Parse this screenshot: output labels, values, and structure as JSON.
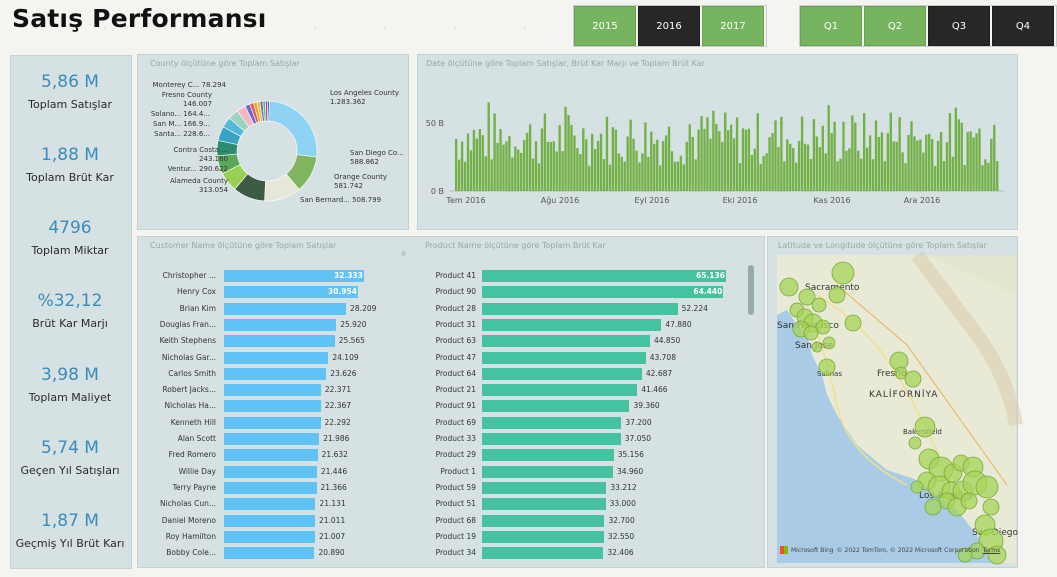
{
  "title": "Satış Performansı",
  "years": [
    {
      "label": "2015",
      "active": true
    },
    {
      "label": "2016",
      "active": false
    },
    {
      "label": "2017",
      "active": true
    }
  ],
  "quarters": [
    {
      "label": "Q1",
      "active": true
    },
    {
      "label": "Q2",
      "active": true
    },
    {
      "label": "Q3",
      "active": false
    },
    {
      "label": "Q4",
      "active": false
    }
  ],
  "kpis": [
    {
      "value": "5,86 M",
      "label": "Toplam Satışlar"
    },
    {
      "value": "1,88 M",
      "label": "Toplam Brüt Kar"
    },
    {
      "value": "4796",
      "label": "Toplam Miktar"
    },
    {
      "value": "%32,12",
      "label": "Brüt Kar Marjı"
    },
    {
      "value": "3,98 M",
      "label": "Toplam Maliyet"
    },
    {
      "value": "5,74 M",
      "label": "Geçen Yıl Satışları"
    },
    {
      "value": "1,87 M",
      "label": "Geçmiş Yıl Brüt Karı"
    }
  ],
  "donut": {
    "title": "County ölçütüne göre Toplam Satışlar",
    "slices": [
      {
        "name": "Los Angeles County",
        "value": "1.283.362",
        "color": "#8fd3f4"
      },
      {
        "name": "San Diego Co...",
        "value": "588.862",
        "color": "#7fb55f"
      },
      {
        "name": "Orange County",
        "value": "581.742",
        "color": "#e6e6da"
      },
      {
        "name": "San Bernard...",
        "value": "508.799",
        "color": "#3d5b45"
      },
      {
        "name": "Alameda County",
        "value": "313.054",
        "color": "#99cf55"
      },
      {
        "name": "Ventur...",
        "value": "290.622",
        "color": "#5aa85a"
      },
      {
        "name": "Contra Costa ...",
        "value": "243.160",
        "color": "#2f8a6e"
      },
      {
        "name": "Santa...",
        "value": "228.6...",
        "color": "#3aa3c4"
      },
      {
        "name": "San M...",
        "value": "166.9...",
        "color": "#55b8d8"
      },
      {
        "name": "Solano...",
        "value": "164.4...",
        "color": "#9cd2c0"
      },
      {
        "name": "Fresno County",
        "value": "146.007",
        "color": "#f2b8c6"
      },
      {
        "name": "Monterey C...",
        "value": "78.294",
        "color": "#6b6bcf"
      }
    ],
    "extra_colors": [
      "#e05a5a",
      "#f0a030",
      "#d0d040",
      "#8a5ab0",
      "#45c0a0",
      "#c04080",
      "#3070c0"
    ]
  },
  "column": {
    "title": "Date ölçütüne göre Toplam Satışlar, Brüt Kar Marjı ve Toplam Brüt Kar",
    "yticks": [
      "50 B",
      "0 B"
    ],
    "xticks": [
      "Tem 2016",
      "Ağu 2016",
      "Eyl 2016",
      "Eki 2016",
      "Kas 2016",
      "Ara 2016"
    ],
    "color": "#73b046"
  },
  "customers": {
    "title": "Customer Name ölçütüne göre Toplam Satışlar",
    "color": "#5fc3f6",
    "rows": [
      {
        "name": "Christopher ...",
        "value": "32.333",
        "num": 32333
      },
      {
        "name": "Henry Cox",
        "value": "30.954",
        "num": 30954
      },
      {
        "name": "Brian Kim",
        "value": "28.209",
        "num": 28209
      },
      {
        "name": "Douglas Fran...",
        "value": "25.920",
        "num": 25920
      },
      {
        "name": "Keith Stephens",
        "value": "25.565",
        "num": 25565
      },
      {
        "name": "Nicholas Gar...",
        "value": "24.109",
        "num": 24109
      },
      {
        "name": "Carlos Smith",
        "value": "23.626",
        "num": 23626
      },
      {
        "name": "Robert Jacks...",
        "value": "22.371",
        "num": 22371
      },
      {
        "name": "Nicholas Ha...",
        "value": "22.367",
        "num": 22367
      },
      {
        "name": "Kenneth Hill",
        "value": "22.292",
        "num": 22292
      },
      {
        "name": "Alan Scott",
        "value": "21.986",
        "num": 21986
      },
      {
        "name": "Fred Romero",
        "value": "21.632",
        "num": 21632
      },
      {
        "name": "Willie Day",
        "value": "21.446",
        "num": 21446
      },
      {
        "name": "Terry Payne",
        "value": "21.366",
        "num": 21366
      },
      {
        "name": "Nicholas Cun...",
        "value": "21.131",
        "num": 21131
      },
      {
        "name": "Daniel Moreno",
        "value": "21.011",
        "num": 21011
      },
      {
        "name": "Roy Hamilton",
        "value": "21.007",
        "num": 21007
      },
      {
        "name": "Bobby Cole...",
        "value": "20.890",
        "num": 20890
      }
    ]
  },
  "products": {
    "title": "Product Name ölçütüne göre Toplam Brüt Kar",
    "color": "#45c2a0",
    "rows": [
      {
        "name": "Product 41",
        "value": "65.136",
        "num": 65136
      },
      {
        "name": "Product 90",
        "value": "64.440",
        "num": 64440
      },
      {
        "name": "Product 28",
        "value": "52.224",
        "num": 52224
      },
      {
        "name": "Product 31",
        "value": "47.880",
        "num": 47880
      },
      {
        "name": "Product 63",
        "value": "44.850",
        "num": 44850
      },
      {
        "name": "Product 47",
        "value": "43.708",
        "num": 43708
      },
      {
        "name": "Product 64",
        "value": "42.687",
        "num": 42687
      },
      {
        "name": "Product 21",
        "value": "41.466",
        "num": 41466
      },
      {
        "name": "Product 91",
        "value": "39.360",
        "num": 39360
      },
      {
        "name": "Product 69",
        "value": "37.200",
        "num": 37200
      },
      {
        "name": "Product 33",
        "value": "37.050",
        "num": 37050
      },
      {
        "name": "Product 29",
        "value": "35.156",
        "num": 35156
      },
      {
        "name": "Product 1",
        "value": "34.960",
        "num": 34960
      },
      {
        "name": "Product 59",
        "value": "33.212",
        "num": 33212
      },
      {
        "name": "Product 51",
        "value": "33.000",
        "num": 33000
      },
      {
        "name": "Product 68",
        "value": "32.700",
        "num": 32700
      },
      {
        "name": "Product 19",
        "value": "32.550",
        "num": 32550
      },
      {
        "name": "Product 34",
        "value": "32.406",
        "num": 32406
      }
    ]
  },
  "map": {
    "title": "Latitude ve Longitude ölçütüne göre Toplam Satışlar",
    "labels": [
      "Sacramento",
      "San Francisco",
      "San Jose",
      "Salinas",
      "Fresno",
      "KALİFORNİYA",
      "Bakersfield",
      "Los Angeles",
      "San Diego"
    ],
    "attribution": "© 2022 TomTom, © 2022 Microsoft Corporation",
    "terms": "Terms",
    "brand": "Microsoft Bing",
    "bubble_color": "#a7d45a"
  }
}
